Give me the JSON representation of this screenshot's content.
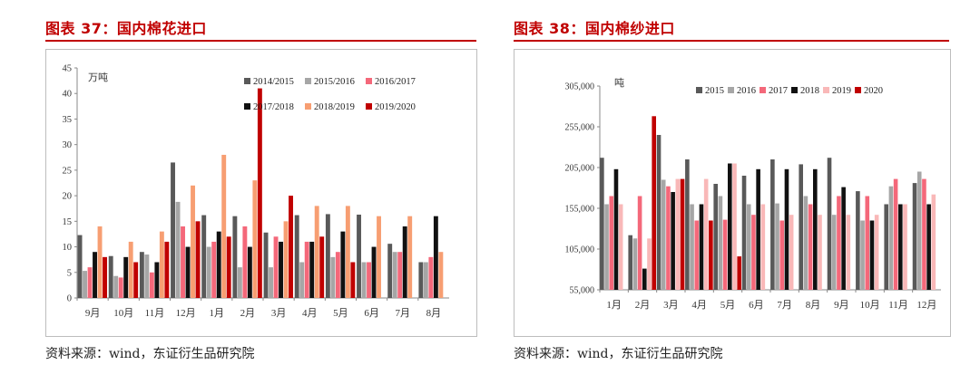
{
  "left": {
    "title": "图表 37：国内棉花进口",
    "source": "资料来源：wind，东证衍生品研究院"
  },
  "right": {
    "title": "图表 38：国内棉纱进口",
    "source": "资料来源：wind，东证衍生品研究院"
  },
  "chart_data": [
    {
      "type": "bar",
      "title": "图表 37：国内棉花进口",
      "ylabel": "万吨",
      "ylim": [
        0,
        45
      ],
      "yticks": [
        0,
        5,
        10,
        15,
        20,
        25,
        30,
        35,
        40,
        45
      ],
      "categories": [
        "9月",
        "10月",
        "11月",
        "12月",
        "1月",
        "2月",
        "3月",
        "4月",
        "5月",
        "6月",
        "7月",
        "8月"
      ],
      "legend_position": "top-right",
      "grid": false,
      "series": [
        {
          "name": "2014/2015",
          "color": "#595959",
          "values": [
            12.3,
            8.2,
            9.0,
            26.5,
            16.2,
            16.0,
            12.8,
            16.2,
            16.4,
            16.3,
            10.6,
            7.0
          ]
        },
        {
          "name": "2015/2016",
          "color": "#a6a6a6",
          "values": [
            5.3,
            4.3,
            8.5,
            18.8,
            10.0,
            6.0,
            6.0,
            7.0,
            8.0,
            7.0,
            9.0,
            7.0
          ]
        },
        {
          "name": "2016/2017",
          "color": "#f4687a",
          "values": [
            6.0,
            4.0,
            5.0,
            14.0,
            11.0,
            14.0,
            12.0,
            11.0,
            9.0,
            7.0,
            9.0,
            8.0
          ]
        },
        {
          "name": "2017/2018",
          "color": "#111111",
          "values": [
            9.0,
            8.0,
            7.0,
            10.0,
            13.0,
            10.0,
            11.0,
            11.0,
            13.0,
            10.0,
            14.0,
            16.0
          ]
        },
        {
          "name": "2018/2019",
          "color": "#f79e72",
          "values": [
            14.0,
            11.0,
            13.0,
            22.0,
            28.0,
            23.0,
            15.0,
            18.0,
            18.0,
            16.0,
            16.0,
            9.0
          ]
        },
        {
          "name": "2019/2020",
          "color": "#c00000",
          "values": [
            8.0,
            7.0,
            11.0,
            15.0,
            12.0,
            41.0,
            20.0,
            12.0,
            7.0,
            null,
            null,
            null
          ]
        }
      ]
    },
    {
      "type": "bar",
      "title": "图表 38：国内棉纱进口",
      "ylabel": "吨",
      "ylim": [
        55000,
        305000
      ],
      "yticks": [
        "55,000",
        "105,000",
        "155,000",
        "205,000",
        "255,000",
        "305,000"
      ],
      "categories": [
        "1月",
        "2月",
        "3月",
        "4月",
        "5月",
        "6月",
        "7月",
        "8月",
        "9月",
        "10月",
        "11月",
        "12月"
      ],
      "legend_position": "top",
      "grid": false,
      "series": [
        {
          "name": "2015",
          "color": "#595959",
          "values": [
            217000,
            122000,
            245000,
            215000,
            185000,
            195000,
            215000,
            209000,
            217000,
            176000,
            160000,
            186000
          ]
        },
        {
          "name": "2016",
          "color": "#a6a6a6",
          "values": [
            160000,
            118000,
            190000,
            160000,
            170000,
            160000,
            161000,
            170000,
            147000,
            140000,
            182000,
            200000
          ]
        },
        {
          "name": "2017",
          "color": "#f4687a",
          "values": [
            170000,
            170000,
            182000,
            140000,
            141000,
            147000,
            140000,
            160000,
            170000,
            170000,
            191000,
            191000
          ]
        },
        {
          "name": "2018",
          "color": "#111111",
          "values": [
            203000,
            81000,
            175000,
            160000,
            210000,
            203000,
            203000,
            203000,
            181000,
            140000,
            160000,
            160000
          ]
        },
        {
          "name": "2019",
          "color": "#f9b8b8",
          "values": [
            160000,
            118000,
            191000,
            191000,
            210000,
            160000,
            147000,
            147000,
            147000,
            147000,
            160000,
            172000
          ]
        },
        {
          "name": "2020",
          "color": "#c00000",
          "values": [
            null,
            268000,
            191000,
            140000,
            96000,
            null,
            null,
            null,
            null,
            null,
            null,
            null
          ]
        }
      ]
    }
  ]
}
